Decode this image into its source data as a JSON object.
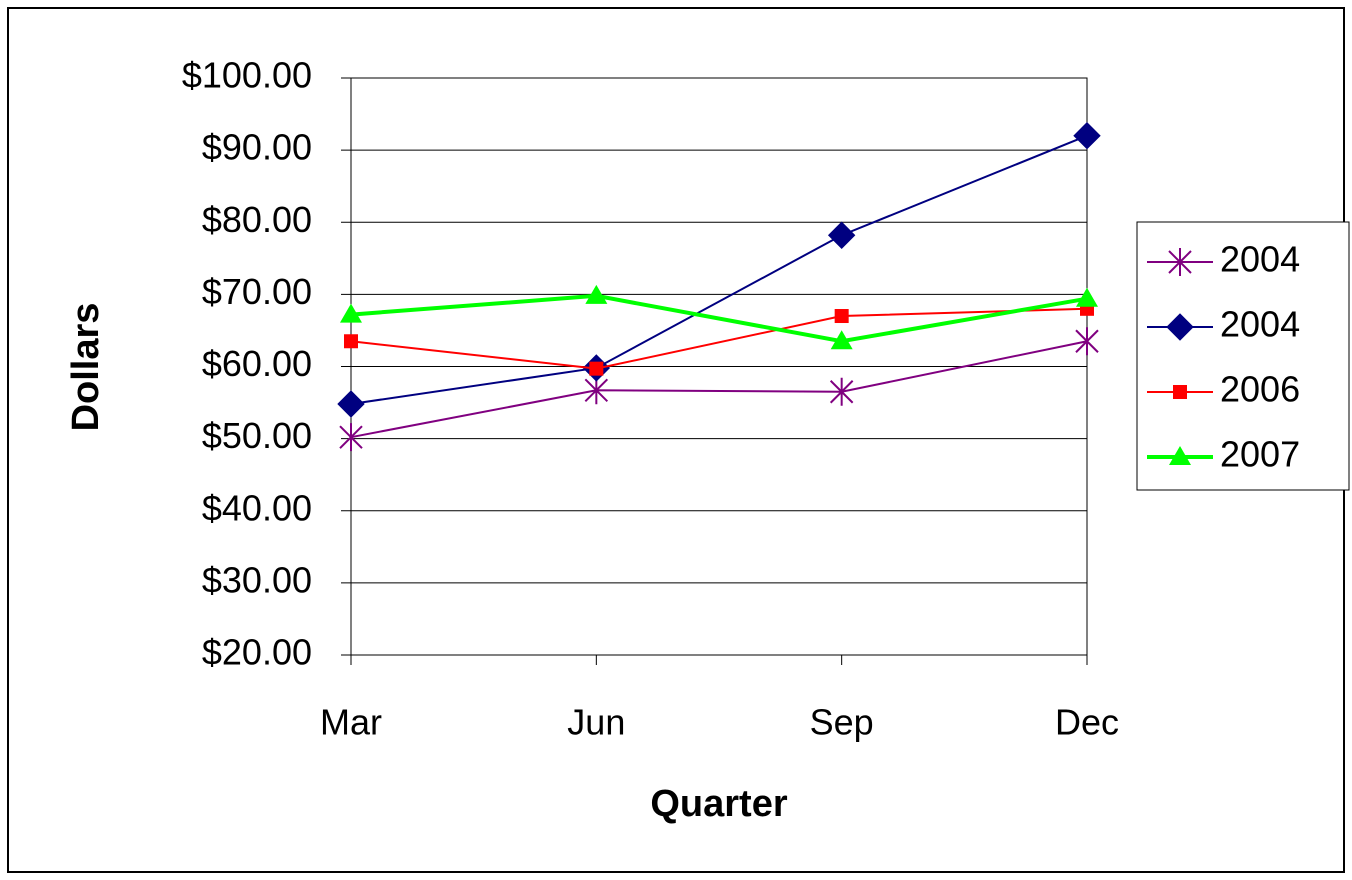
{
  "chart_data": {
    "type": "line",
    "x_label": "Quarter",
    "y_label": "Dollars",
    "categories": [
      "Mar",
      "Jun",
      "Sep",
      "Dec"
    ],
    "series": [
      {
        "name": "2004",
        "color": "#800080",
        "marker": "star",
        "width": 2,
        "values": [
          50.2,
          56.7,
          56.5,
          63.5
        ]
      },
      {
        "name": "2004",
        "color": "#000080",
        "marker": "diamond",
        "width": 2,
        "values": [
          54.8,
          59.8,
          78.2,
          92
        ]
      },
      {
        "name": "2006",
        "color": "#ff0000",
        "marker": "square",
        "width": 2,
        "values": [
          63.5,
          59.7,
          67,
          68
        ]
      },
      {
        "name": "2007",
        "color": "#00ff00",
        "marker": "triangle",
        "width": 4,
        "values": [
          67.2,
          69.8,
          63.5,
          69.4
        ]
      }
    ],
    "ylim": [
      20,
      100
    ],
    "yticks": [
      {
        "value": 20,
        "label": "$20.00"
      },
      {
        "value": 30,
        "label": "$30.00"
      },
      {
        "value": 40,
        "label": "$40.00"
      },
      {
        "value": 50,
        "label": "$50.00"
      },
      {
        "value": 60,
        "label": "$60.00"
      },
      {
        "value": 70,
        "label": "$70.00"
      },
      {
        "value": 80,
        "label": "$80.00"
      },
      {
        "value": 90,
        "label": "$90.00"
      },
      {
        "value": 100,
        "label": "$100.00"
      }
    ],
    "grid": true,
    "legend": "right"
  }
}
